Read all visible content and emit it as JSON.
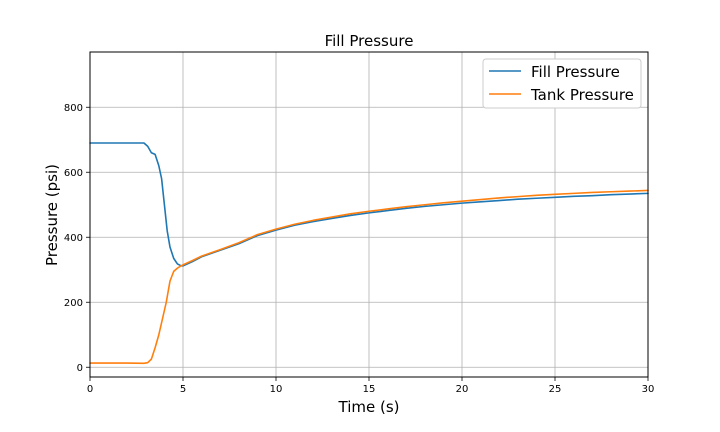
{
  "chart_data": {
    "type": "line",
    "title": "Fill Pressure",
    "xlabel": "Time (s)",
    "ylabel": "Pressure (psi)",
    "xlim": [
      0,
      30
    ],
    "ylim": [
      -30,
      970
    ],
    "xticks": [
      0,
      5,
      10,
      15,
      20,
      25,
      30
    ],
    "yticks": [
      0,
      200,
      400,
      600,
      800
    ],
    "grid": true,
    "legend_position": "top-right",
    "series": [
      {
        "name": "Fill Pressure",
        "color": "#1f77b4",
        "points": [
          [
            0,
            690
          ],
          [
            1,
            690
          ],
          [
            2,
            690
          ],
          [
            2.9,
            690
          ],
          [
            3.1,
            680
          ],
          [
            3.3,
            660
          ],
          [
            3.5,
            655
          ],
          [
            3.7,
            620
          ],
          [
            3.85,
            580
          ],
          [
            4.0,
            500
          ],
          [
            4.15,
            420
          ],
          [
            4.3,
            370
          ],
          [
            4.5,
            335
          ],
          [
            4.7,
            318
          ],
          [
            4.9,
            312
          ],
          [
            5.0,
            312
          ],
          [
            5.5,
            325
          ],
          [
            6,
            340
          ],
          [
            7,
            360
          ],
          [
            8,
            380
          ],
          [
            9,
            405
          ],
          [
            10,
            422
          ],
          [
            11,
            437
          ],
          [
            12,
            448
          ],
          [
            13,
            458
          ],
          [
            14,
            467
          ],
          [
            15,
            475
          ],
          [
            16,
            482
          ],
          [
            17,
            489
          ],
          [
            18,
            495
          ],
          [
            19,
            500
          ],
          [
            20,
            505
          ],
          [
            21,
            509
          ],
          [
            22,
            513
          ],
          [
            23,
            517
          ],
          [
            24,
            520
          ],
          [
            25,
            523
          ],
          [
            26,
            526
          ],
          [
            27,
            528
          ],
          [
            28,
            531
          ],
          [
            29,
            533
          ],
          [
            30,
            535
          ]
        ]
      },
      {
        "name": "Tank Pressure",
        "color": "#ff7f0e",
        "points": [
          [
            0,
            13
          ],
          [
            1,
            13
          ],
          [
            2,
            13
          ],
          [
            2.9,
            12
          ],
          [
            3.1,
            14
          ],
          [
            3.3,
            25
          ],
          [
            3.5,
            60
          ],
          [
            3.7,
            100
          ],
          [
            3.9,
            150
          ],
          [
            4.1,
            200
          ],
          [
            4.3,
            265
          ],
          [
            4.5,
            295
          ],
          [
            4.7,
            305
          ],
          [
            4.9,
            312
          ],
          [
            5.0,
            315
          ],
          [
            5.5,
            328
          ],
          [
            6,
            342
          ],
          [
            7,
            362
          ],
          [
            8,
            383
          ],
          [
            9,
            408
          ],
          [
            10,
            425
          ],
          [
            11,
            440
          ],
          [
            12,
            452
          ],
          [
            13,
            462
          ],
          [
            14,
            472
          ],
          [
            15,
            480
          ],
          [
            16,
            487
          ],
          [
            17,
            494
          ],
          [
            18,
            500
          ],
          [
            19,
            506
          ],
          [
            20,
            511
          ],
          [
            21,
            516
          ],
          [
            22,
            521
          ],
          [
            23,
            525
          ],
          [
            24,
            529
          ],
          [
            25,
            532
          ],
          [
            26,
            535
          ],
          [
            27,
            538
          ],
          [
            28,
            540
          ],
          [
            29,
            542
          ],
          [
            30,
            544
          ]
        ]
      }
    ]
  }
}
